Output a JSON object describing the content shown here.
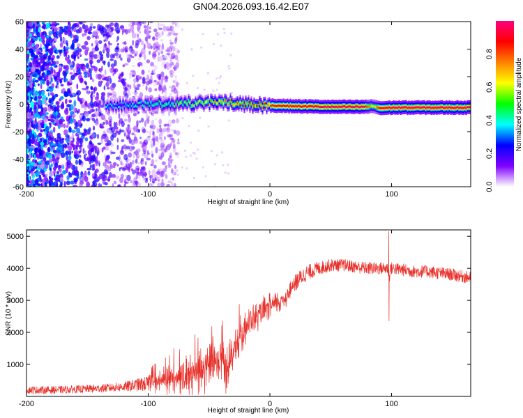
{
  "title": "GN04.2026.093.16.42.E07",
  "chart_data": [
    {
      "type": "heatmap",
      "subtype": "spectrogram",
      "xlabel": "Height of straight line (km)",
      "ylabel": "Frequency (Hz)",
      "xlim": [
        -200,
        165
      ],
      "ylim": [
        -60,
        60
      ],
      "xticks": [
        -200,
        -100,
        0,
        100
      ],
      "yticks": [
        60,
        40,
        20,
        0,
        -20,
        -40,
        -60
      ],
      "colorbar": {
        "label": "Normalized spectral amplitude",
        "range": [
          0,
          1
        ],
        "ticks": [
          0.0,
          0.2,
          0.4,
          0.6,
          0.8
        ],
        "colors": [
          "#ffffff",
          "#8000ff",
          "#0000ff",
          "#00ffff",
          "#00ff00",
          "#ffff00",
          "#ff8000",
          "#ff0000",
          "#ff0080"
        ]
      },
      "signal": {
        "description_x": [
          -135,
          -100,
          -60,
          -40,
          -20,
          0,
          20,
          50,
          75,
          85,
          90,
          100,
          130,
          165
        ],
        "center_freq_hz": [
          -1,
          0,
          0.5,
          1.5,
          0,
          -1,
          -1.5,
          -2,
          -2,
          -1.5,
          -3,
          -2.5,
          -2.5,
          -2.5
        ],
        "amplitude": [
          0.35,
          0.45,
          0.6,
          0.7,
          0.75,
          0.85,
          0.9,
          0.95,
          0.95,
          0.6,
          0.9,
          0.95,
          0.95,
          0.95
        ],
        "noise_region_x": [
          -200,
          -85
        ]
      }
    },
    {
      "type": "line",
      "xlabel": "Height of straight line (km)",
      "ylabel": "SNR (10 * v/v)",
      "xlim": [
        -200,
        165
      ],
      "ylim": [
        0,
        5200
      ],
      "xticks": [
        -200,
        -100,
        0,
        100
      ],
      "yticks": [
        1000,
        2000,
        3000,
        4000,
        5000
      ],
      "color": "#e8302a",
      "x": [
        -200,
        -180,
        -160,
        -140,
        -120,
        -100,
        -90,
        -80,
        -70,
        -60,
        -50,
        -40,
        -35,
        -30,
        -25,
        -20,
        -10,
        0,
        10,
        15,
        20,
        25,
        30,
        40,
        50,
        60,
        70,
        80,
        90,
        97,
        98,
        99,
        100,
        110,
        120,
        130,
        140,
        150,
        165
      ],
      "y": [
        200,
        200,
        220,
        250,
        300,
        400,
        450,
        500,
        600,
        700,
        900,
        1000,
        900,
        1500,
        1800,
        2200,
        2500,
        2800,
        3000,
        3200,
        3500,
        3700,
        3850,
        4000,
        4100,
        4100,
        4050,
        4000,
        4000,
        4000,
        3700,
        4000,
        4000,
        3950,
        3900,
        3900,
        3850,
        3800,
        3700
      ],
      "noise_amp": [
        120,
        120,
        120,
        130,
        150,
        250,
        350,
        450,
        550,
        650,
        700,
        700,
        700,
        600,
        550,
        500,
        450,
        400,
        350,
        300,
        280,
        260,
        250,
        220,
        200,
        200,
        200,
        200,
        200,
        200,
        200,
        200,
        200,
        200,
        200,
        200,
        200,
        200,
        200
      ]
    }
  ]
}
